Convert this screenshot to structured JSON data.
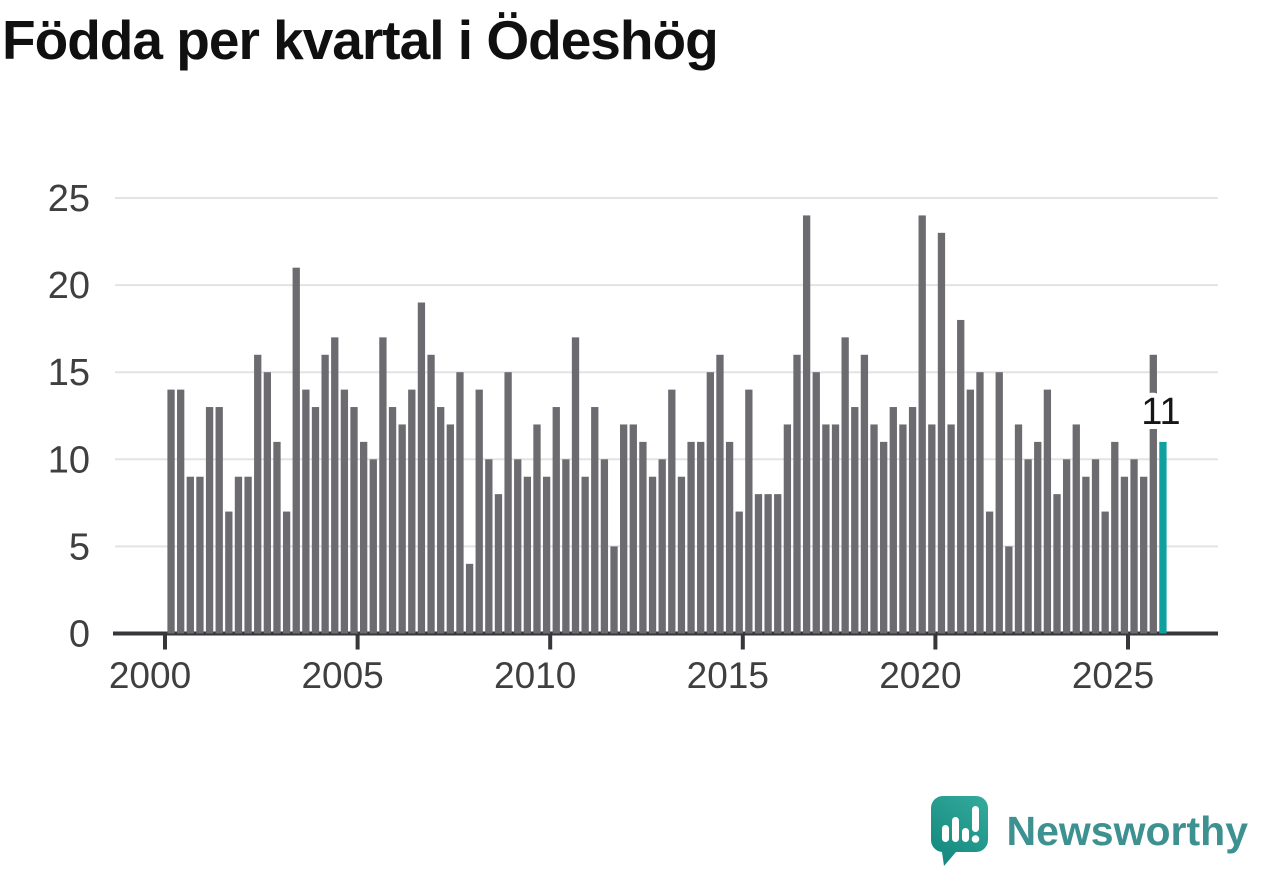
{
  "title": "Födda per kvartal i Ödeshög",
  "chart_data": {
    "type": "bar",
    "title": "Födda per kvartal i Ödeshög",
    "xlabel": "",
    "ylabel": "",
    "frequency": "quarterly",
    "x_start_year": 2000,
    "x_end_year": 2025,
    "x_tick_labels": [
      "2000",
      "2005",
      "2010",
      "2015",
      "2020",
      "2025"
    ],
    "y_ticks": [
      0,
      5,
      10,
      15,
      20,
      25
    ],
    "ylim": [
      0,
      25
    ],
    "grid": true,
    "legend": "none",
    "series": [
      {
        "name": "Födda per kvartal",
        "values_by_year": {
          "2000": [
            14,
            14,
            9,
            9
          ],
          "2001": [
            13,
            13,
            7,
            9
          ],
          "2002": [
            9,
            16,
            15,
            11
          ],
          "2003": [
            7,
            21,
            14,
            13
          ],
          "2004": [
            16,
            17,
            14,
            13
          ],
          "2005": [
            11,
            10,
            17,
            13
          ],
          "2006": [
            12,
            14,
            19,
            16
          ],
          "2007": [
            13,
            12,
            15,
            4
          ],
          "2008": [
            14,
            10,
            8,
            15
          ],
          "2009": [
            10,
            9,
            12,
            9
          ],
          "2010": [
            13,
            10,
            17,
            9
          ],
          "2011": [
            13,
            10,
            5,
            12
          ],
          "2012": [
            12,
            11,
            9,
            10
          ],
          "2013": [
            14,
            9,
            11,
            11
          ],
          "2014": [
            15,
            16,
            11,
            7
          ],
          "2015": [
            14,
            8,
            8,
            8
          ],
          "2016": [
            12,
            16,
            24,
            15
          ],
          "2017": [
            12,
            12,
            17,
            13
          ],
          "2018": [
            16,
            12,
            11,
            13
          ],
          "2019": [
            12,
            13,
            24,
            12
          ],
          "2020": [
            23,
            12,
            18,
            14
          ],
          "2021": [
            15,
            7,
            15,
            5
          ],
          "2022": [
            12,
            10,
            11,
            14
          ],
          "2023": [
            8,
            10,
            12,
            9
          ],
          "2024": [
            10,
            7,
            11,
            9
          ],
          "2025": [
            10,
            9,
            16,
            11
          ]
        }
      }
    ],
    "highlight": {
      "position": "last-bar",
      "value": 11,
      "label": "11"
    }
  },
  "annotation": {
    "last_value_label": "11"
  },
  "branding": {
    "name": "Newsworthy",
    "logo_icon": "speech-bubble-bar-chart-icon"
  },
  "colors": {
    "background": "#ffffff",
    "bar": "#6b6b70",
    "highlight": "#10a19e",
    "grid": "#e3e3e3",
    "axis": "#36363b",
    "tick_label": "#3f3f3f",
    "title": "#101010",
    "annotation_text": "#161616",
    "logo_text": "#3e9191",
    "bubble_top": "#31a899",
    "bubble_bottom": "#13887f"
  }
}
